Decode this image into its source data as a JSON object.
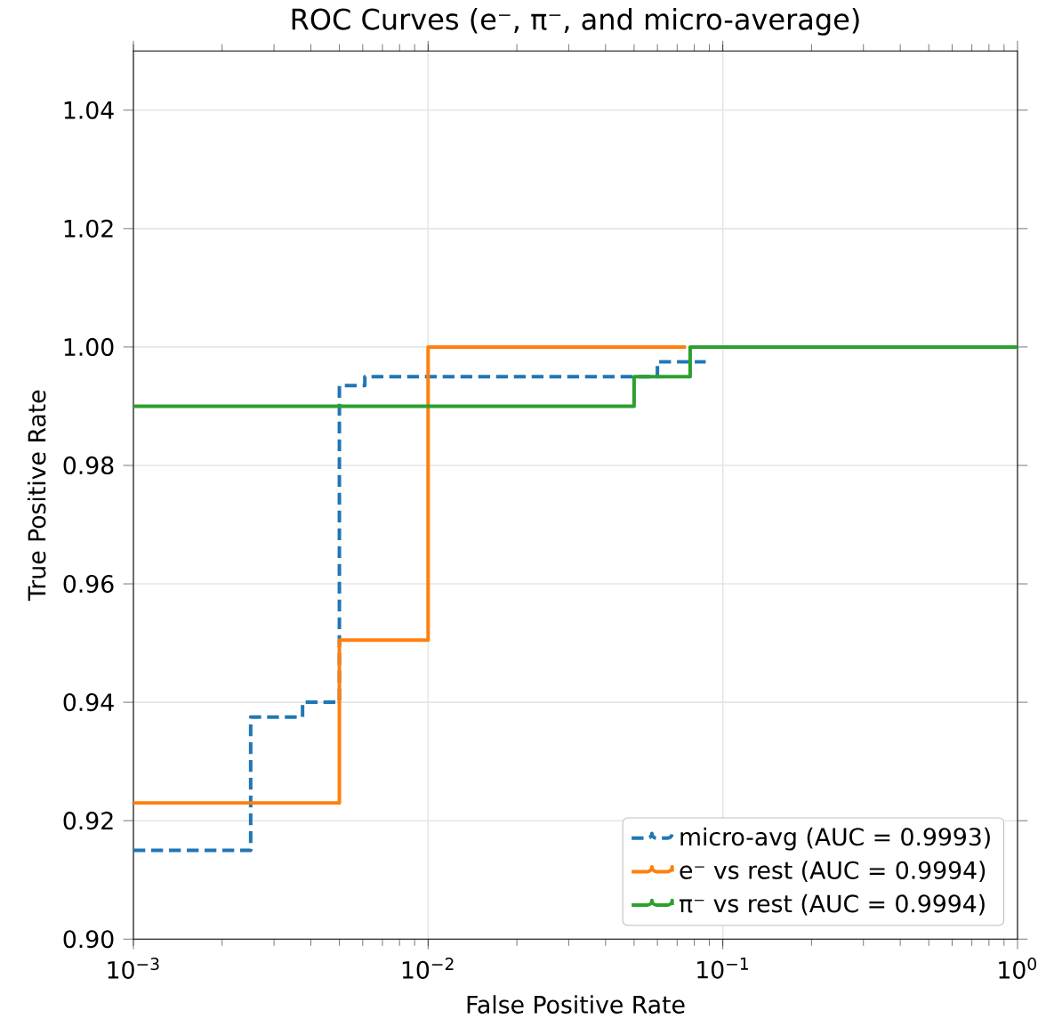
{
  "chart_data": {
    "type": "step",
    "title": "ROC Curves (e⁻, π⁻, and micro-average)",
    "xlabel": "False Positive Rate",
    "ylabel": "True Positive Rate",
    "log": "x",
    "grid": true,
    "legend": "bottom right",
    "xlim": [
      0.001,
      1
    ],
    "ylim": [
      0.9,
      1.05
    ],
    "xticks": [
      {
        "value": 0.001,
        "label": "10$^{−3}$"
      },
      {
        "value": 0.01,
        "label": "10$^{−2}$"
      },
      {
        "value": 0.1,
        "label": "10$^{−1}$"
      },
      {
        "value": 1,
        "label": "10$^{0}$"
      }
    ],
    "yticks": [
      {
        "value": 0.9,
        "label": "0.90"
      },
      {
        "value": 0.92,
        "label": "0.92"
      },
      {
        "value": 0.94,
        "label": "0.94"
      },
      {
        "value": 0.96,
        "label": "0.96"
      },
      {
        "value": 0.98,
        "label": "0.98"
      },
      {
        "value": 1.0,
        "label": "1.00"
      },
      {
        "value": 1.02,
        "label": "1.02"
      },
      {
        "value": 1.04,
        "label": "1.04"
      }
    ],
    "series": [
      {
        "name": "micro-avg (AUC = 0.9993)",
        "color": "#1f77b4",
        "line_style": "dashed",
        "x": [
          0.001,
          0.0025,
          0.00375,
          0.005,
          0.0061,
          0.06,
          0.0875
        ],
        "values": [
          0.915,
          0.9375,
          0.94,
          0.9935,
          0.995,
          0.9975,
          0.9975
        ]
      },
      {
        "name": "e⁻ vs rest (AUC = 0.9994)",
        "color": "#ff7f0e",
        "line_style": "solid",
        "x": [
          0.001,
          0.005,
          0.01,
          0.075
        ],
        "values": [
          0.923,
          0.9505,
          1.0,
          1.0
        ]
      },
      {
        "name": "π⁻ vs rest (AUC = 0.9994)",
        "color": "#2ca02c",
        "line_style": "solid",
        "x": [
          0.001,
          0.05,
          0.0775,
          1
        ],
        "values": [
          0.99,
          0.995,
          1.0,
          1.0
        ]
      }
    ]
  }
}
